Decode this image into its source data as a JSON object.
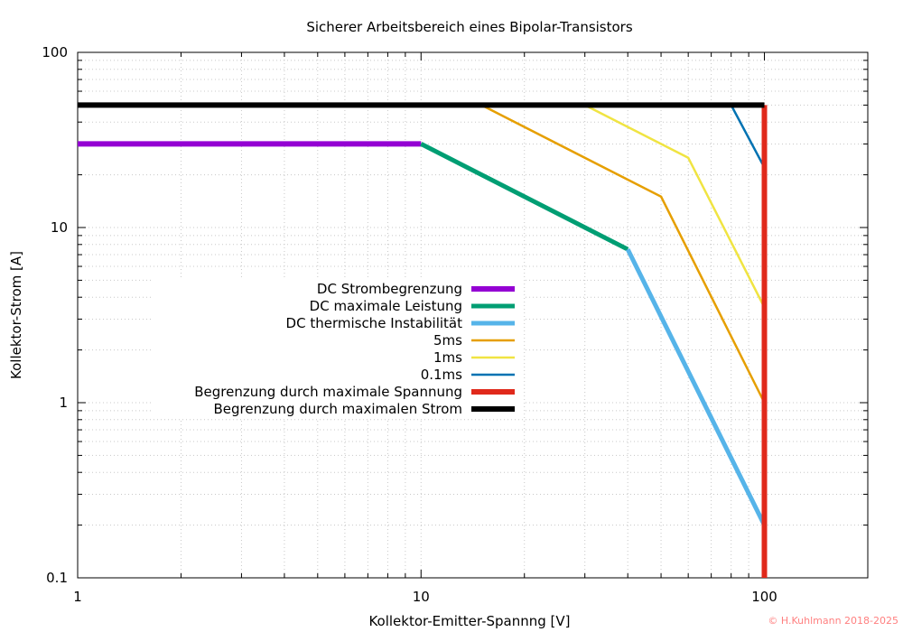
{
  "chart_data": {
    "type": "line",
    "title": "Sicherer Arbeitsbereich eines Bipolar-Transistors",
    "xlabel": "Kollektor-Emitter-Spannng [V]",
    "ylabel": "Kollektor-Strom [A]",
    "xscale": "log",
    "yscale": "log",
    "xlim": [
      1,
      200
    ],
    "ylim": [
      0.1,
      100
    ],
    "xticks": [
      "1",
      "10",
      "100"
    ],
    "yticks": [
      "0.1",
      "1",
      "10",
      "100"
    ],
    "grid": true,
    "legend_position": "center-left",
    "series": [
      {
        "name": "DC Strombegrenzung",
        "color": "#9400d3",
        "width": 6,
        "x": [
          1,
          10
        ],
        "y": [
          30,
          30
        ]
      },
      {
        "name": "DC maximale Leistung",
        "color": "#009e73",
        "width": 5,
        "x": [
          10,
          40
        ],
        "y": [
          30,
          7.5
        ]
      },
      {
        "name": "DC thermische Instabilität",
        "color": "#56b4e9",
        "width": 5,
        "x": [
          40,
          100
        ],
        "y": [
          7.5,
          0.2
        ]
      },
      {
        "name": "5ms",
        "color": "#e69f00",
        "width": 2.5,
        "x": [
          15,
          50,
          100
        ],
        "y": [
          50,
          15,
          1
        ]
      },
      {
        "name": "1ms",
        "color": "#f0e442",
        "width": 2.5,
        "x": [
          30,
          60,
          100
        ],
        "y": [
          50,
          25,
          3.5
        ]
      },
      {
        "name": "0.1ms",
        "color": "#0072b2",
        "width": 2.5,
        "x": [
          80,
          100
        ],
        "y": [
          50,
          22
        ]
      },
      {
        "name": "Begrenzung durch maximale Spannung",
        "color": "#e0291b",
        "width": 6,
        "x": [
          100,
          100
        ],
        "y": [
          0.1,
          50
        ]
      },
      {
        "name": "Begrenzung durch maximalen Strom",
        "color": "#000000",
        "width": 6,
        "x": [
          1,
          100
        ],
        "y": [
          50,
          50
        ]
      }
    ]
  },
  "credit": "© H.Kuhlmann 2018-2025"
}
